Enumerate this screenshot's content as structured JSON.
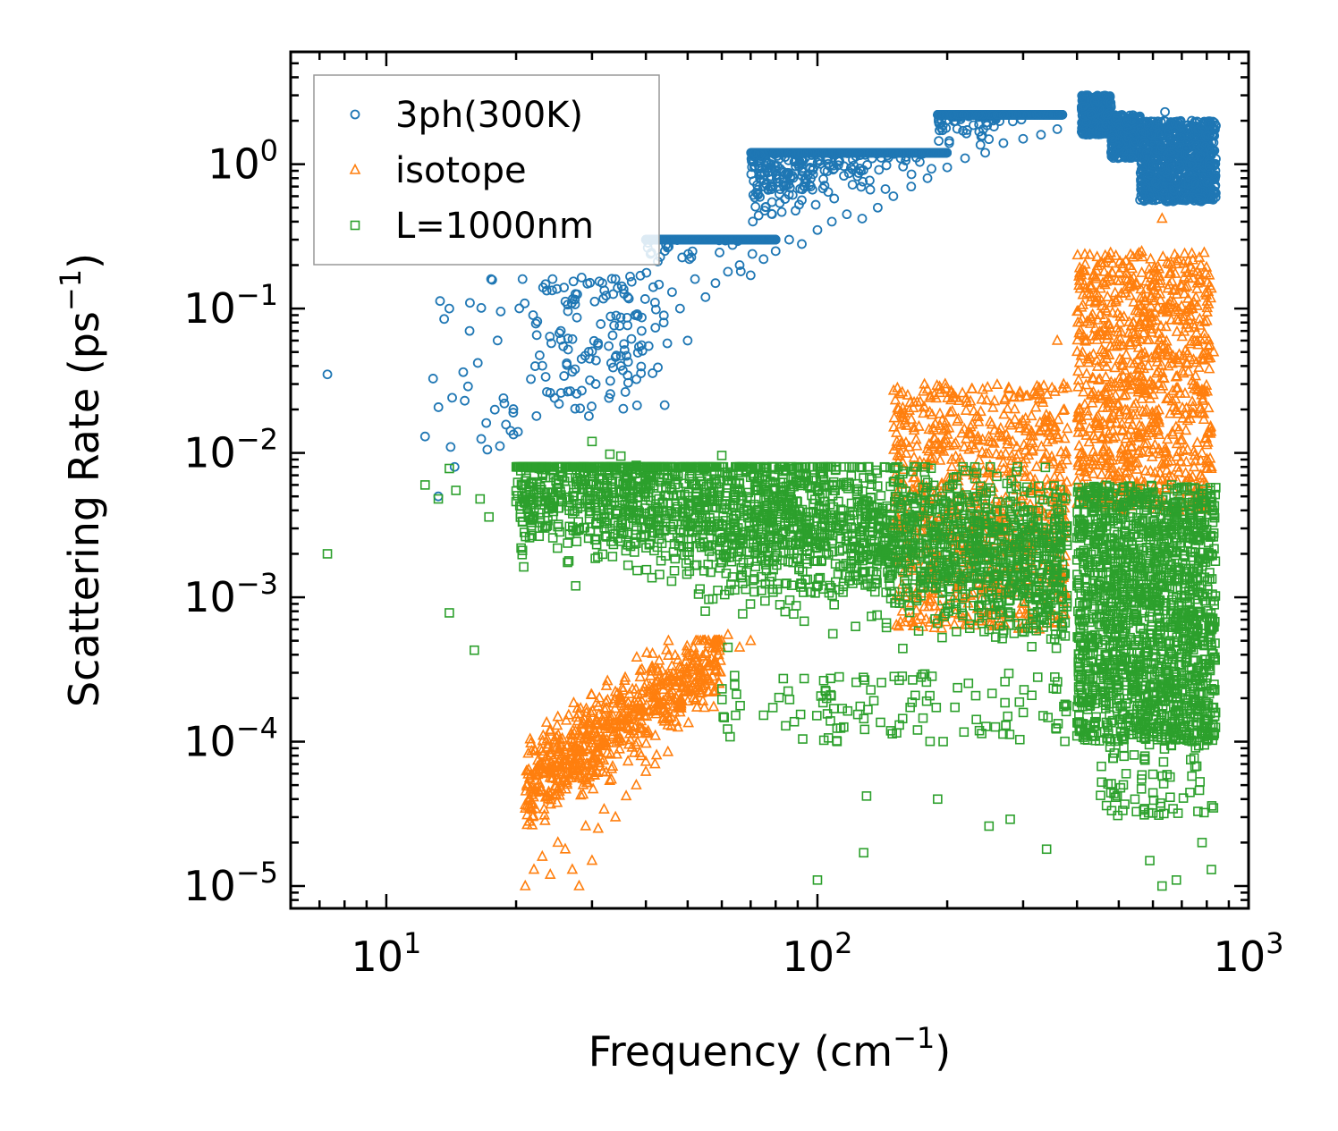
{
  "chart_data": {
    "type": "scatter",
    "xscale": "log",
    "yscale": "log",
    "xlabel_base": "Frequency (cm",
    "xlabel_exp": "−1",
    "xlabel_close": ")",
    "ylabel_base": "Scattering Rate (ps",
    "ylabel_exp": "−1",
    "ylabel_close": ")",
    "xlim": [
      6,
      1000
    ],
    "ylim": [
      7e-06,
      6
    ],
    "x_ticks": [
      {
        "value": 10,
        "base": "10",
        "exp": "1"
      },
      {
        "value": 100,
        "base": "10",
        "exp": "2"
      },
      {
        "value": 1000,
        "base": "10",
        "exp": "3"
      }
    ],
    "y_ticks": [
      {
        "value": 1,
        "base": "10",
        "exp": "0"
      },
      {
        "value": 0.1,
        "base": "10",
        "exp": "−1"
      },
      {
        "value": 0.01,
        "base": "10",
        "exp": "−2"
      },
      {
        "value": 0.001,
        "base": "10",
        "exp": "−3"
      },
      {
        "value": 0.0001,
        "base": "10",
        "exp": "−4"
      },
      {
        "value": 1e-05,
        "base": "10",
        "exp": "−5"
      }
    ],
    "legend_position": "top-left",
    "series": [
      {
        "name": "3ph(300K)",
        "color": "#1f77b4",
        "marker": "circle",
        "points": [
          [
            7.3,
            0.035
          ],
          [
            12.3,
            0.013
          ],
          [
            13.2,
            0.005
          ],
          [
            14,
            0.1
          ],
          [
            14.1,
            0.011
          ],
          [
            14.4,
            0.008
          ],
          [
            15.2,
            0.023
          ],
          [
            15.6,
            0.07
          ],
          [
            16.3,
            0.042
          ],
          [
            16.6,
            0.0125
          ],
          [
            17.5,
            0.16
          ],
          [
            19.7,
            0.019
          ],
          [
            20.2,
            0.014
          ],
          [
            20.7,
            0.16
          ],
          [
            21.9,
            0.09
          ],
          [
            22.3,
            0.018
          ],
          [
            23.1,
            0.14
          ],
          [
            24.3,
            0.16
          ],
          [
            25.4,
            0.07
          ],
          [
            26.4,
            0.052
          ],
          [
            27.4,
            0.038
          ],
          [
            28.4,
            0.027
          ],
          [
            29.5,
            0.018
          ],
          [
            30.6,
            0.03
          ],
          [
            31.7,
            0.15
          ],
          [
            32.8,
            0.055
          ],
          [
            34,
            0.16
          ],
          [
            35,
            0.04
          ],
          [
            36.3,
            0.12
          ],
          [
            37.8,
            0.09
          ],
          [
            39.1,
            0.07
          ],
          [
            40.6,
            0.055
          ],
          [
            42,
            0.11
          ],
          [
            44,
            0.08
          ],
          [
            46,
            0.13
          ],
          [
            48,
            0.1
          ],
          [
            50,
            0.06
          ],
          [
            52,
            0.16
          ],
          [
            55,
            0.12
          ],
          [
            58,
            0.15
          ],
          [
            62,
            0.18
          ],
          [
            66,
            0.2
          ],
          [
            70,
            0.17
          ],
          [
            75,
            0.22
          ],
          [
            80,
            0.25
          ],
          [
            86,
            0.3
          ],
          [
            92,
            0.28
          ],
          [
            100,
            0.35
          ],
          [
            108,
            0.4
          ],
          [
            117,
            0.45
          ],
          [
            127,
            0.42
          ],
          [
            138,
            0.5
          ],
          [
            150,
            0.6
          ],
          [
            165,
            0.7
          ],
          [
            180,
            0.8
          ],
          [
            200,
            0.95
          ],
          [
            220,
            1.1
          ],
          [
            245,
            1.2
          ],
          [
            270,
            1.4
          ],
          [
            300,
            1.5
          ],
          [
            330,
            1.6
          ],
          [
            360,
            1.75
          ],
          [
            420,
            3.0
          ],
          [
            440,
            2.7
          ],
          [
            470,
            2.2
          ],
          [
            500,
            1.9
          ],
          [
            540,
            1.4
          ],
          [
            580,
            1.2
          ],
          [
            640,
            2.3
          ],
          [
            690,
            1.3
          ],
          [
            740,
            1.0
          ],
          [
            800,
            0.75
          ],
          [
            830,
            0.62
          ]
        ],
        "bands": [
          {
            "x": [
              12,
              22
            ],
            "y": [
              0.008,
              0.16
            ],
            "n": 25,
            "spread": "log"
          },
          {
            "x": [
              22,
              45
            ],
            "y": [
              0.02,
              0.17
            ],
            "n": 120,
            "spread": "log"
          },
          {
            "x": [
              40,
              80
            ],
            "y": [
              0.05,
              0.3
            ],
            "n": 650,
            "dens": "trend",
            "a": 0.15,
            "b": 1.05,
            "w": 0.55
          },
          {
            "x": [
              70,
              200
            ],
            "y": [
              0.1,
              1.2
            ],
            "n": 1000,
            "dens": "trend",
            "a": 0.15,
            "b": 1.05,
            "w": 0.42
          },
          {
            "x": [
              190,
              370
            ],
            "y": [
              0.35,
              2.2
            ],
            "n": 1100,
            "dens": "trend",
            "a": 0.15,
            "b": 1.05,
            "w": 0.35
          },
          {
            "x": [
              410,
              480
            ],
            "y": [
              1.6,
              3.0
            ],
            "n": 450,
            "spread": "log"
          },
          {
            "x": [
              480,
              560
            ],
            "y": [
              1.1,
              2.2
            ],
            "n": 300,
            "spread": "log"
          },
          {
            "x": [
              560,
              840
            ],
            "y": [
              0.55,
              2.0
            ],
            "n": 900,
            "spread": "log"
          }
        ]
      },
      {
        "name": "isotope",
        "color": "#ff7f0e",
        "marker": "triangle",
        "points": [
          [
            21,
            1e-05
          ],
          [
            22,
            1.3e-05
          ],
          [
            23,
            1.6e-05
          ],
          [
            24,
            1.2e-05
          ],
          [
            25,
            2e-05
          ],
          [
            26,
            1.8e-05
          ],
          [
            27,
            1.3e-05
          ],
          [
            28,
            1e-05
          ],
          [
            29,
            2.6e-05
          ],
          [
            30,
            1.5e-05
          ],
          [
            31,
            2.5e-05
          ],
          [
            32,
            3.4e-05
          ],
          [
            34,
            3e-05
          ],
          [
            36,
            4.2e-05
          ],
          [
            38,
            5e-05
          ],
          [
            40,
            6.2e-05
          ],
          [
            42,
            7e-05
          ],
          [
            45,
            8.5e-05
          ],
          [
            48,
            0.00016
          ],
          [
            50,
            0.00022
          ],
          [
            53,
            0.00028
          ],
          [
            55,
            0.00035
          ],
          [
            58,
            0.00045
          ],
          [
            62,
            0.00055
          ],
          [
            66,
            0.00045
          ],
          [
            70,
            0.0005
          ],
          [
            205,
            0.009
          ],
          [
            230,
            0.007
          ],
          [
            250,
            0.012
          ],
          [
            290,
            0.011
          ],
          [
            360,
            0.06
          ],
          [
            540,
            0.08
          ],
          [
            630,
            0.42
          ],
          [
            760,
            0.18
          ],
          [
            830,
            0.05
          ],
          [
            820,
            0.008
          ]
        ],
        "bands": [
          {
            "x": [
              21,
              60
            ],
            "y": [
              1e-05,
              0.0005
            ],
            "n": 700,
            "dens": "trend",
            "a": 1.05e-05,
            "b": 2.05,
            "w": 0.3
          },
          {
            "x": [
              150,
              380
            ],
            "y": [
              0.0006,
              0.03
            ],
            "n": 800,
            "spread": "log"
          },
          {
            "x": [
              400,
              820
            ],
            "y": [
              0.004,
              0.25
            ],
            "n": 900,
            "spread": "log"
          }
        ]
      },
      {
        "name": "L=1000nm",
        "color": "#2ca02c",
        "marker": "square",
        "points": [
          [
            7.3,
            0.002
          ],
          [
            12.3,
            0.006
          ],
          [
            13.2,
            0.0048
          ],
          [
            14,
            0.0078
          ],
          [
            14.5,
            0.0055
          ],
          [
            16,
            0.00043
          ],
          [
            16.5,
            0.0048
          ],
          [
            17.3,
            0.0036
          ],
          [
            20,
            0.0046
          ],
          [
            21,
            0.0045
          ],
          [
            22,
            0.0047
          ],
          [
            27.5,
            0.0012
          ],
          [
            30,
            0.012
          ],
          [
            33,
            0.0098
          ],
          [
            35,
            0.0095
          ],
          [
            38,
            0.0082
          ],
          [
            45,
            0.0075
          ],
          [
            50,
            0.005
          ],
          [
            55,
            0.0048
          ],
          [
            60,
            0.0096
          ],
          [
            62,
            0.00045
          ],
          [
            14,
            0.00078
          ],
          [
            100,
            1.1e-05
          ],
          [
            128,
            1.7e-05
          ],
          [
            130,
            4.2e-05
          ],
          [
            190,
            4e-05
          ],
          [
            250,
            2.6e-05
          ],
          [
            280,
            2.9e-05
          ],
          [
            340,
            1.8e-05
          ],
          [
            590,
            1.5e-05
          ],
          [
            630,
            1e-05
          ],
          [
            780,
            2e-05
          ],
          [
            820,
            1.3e-05
          ],
          [
            680,
            1.1e-05
          ],
          [
            520,
            6e-05
          ],
          [
            600,
            3.2e-05
          ]
        ],
        "bands": [
          {
            "x": [
              20,
              380
            ],
            "y": [
              0.0002,
              0.008
            ],
            "n": 2600,
            "dens": "trend",
            "a": 0.012,
            "b": -0.55,
            "w": 0.55
          },
          {
            "x": [
              60,
              380
            ],
            "y": [
              0.0001,
              0.0003
            ],
            "n": 120,
            "spread": "log"
          },
          {
            "x": [
              400,
              840
            ],
            "y": [
              0.0001,
              0.006
            ],
            "n": 1600,
            "spread": "log"
          },
          {
            "x": [
              450,
              830
            ],
            "y": [
              3e-05,
              0.00012
            ],
            "n": 80,
            "spread": "log"
          }
        ]
      }
    ]
  }
}
